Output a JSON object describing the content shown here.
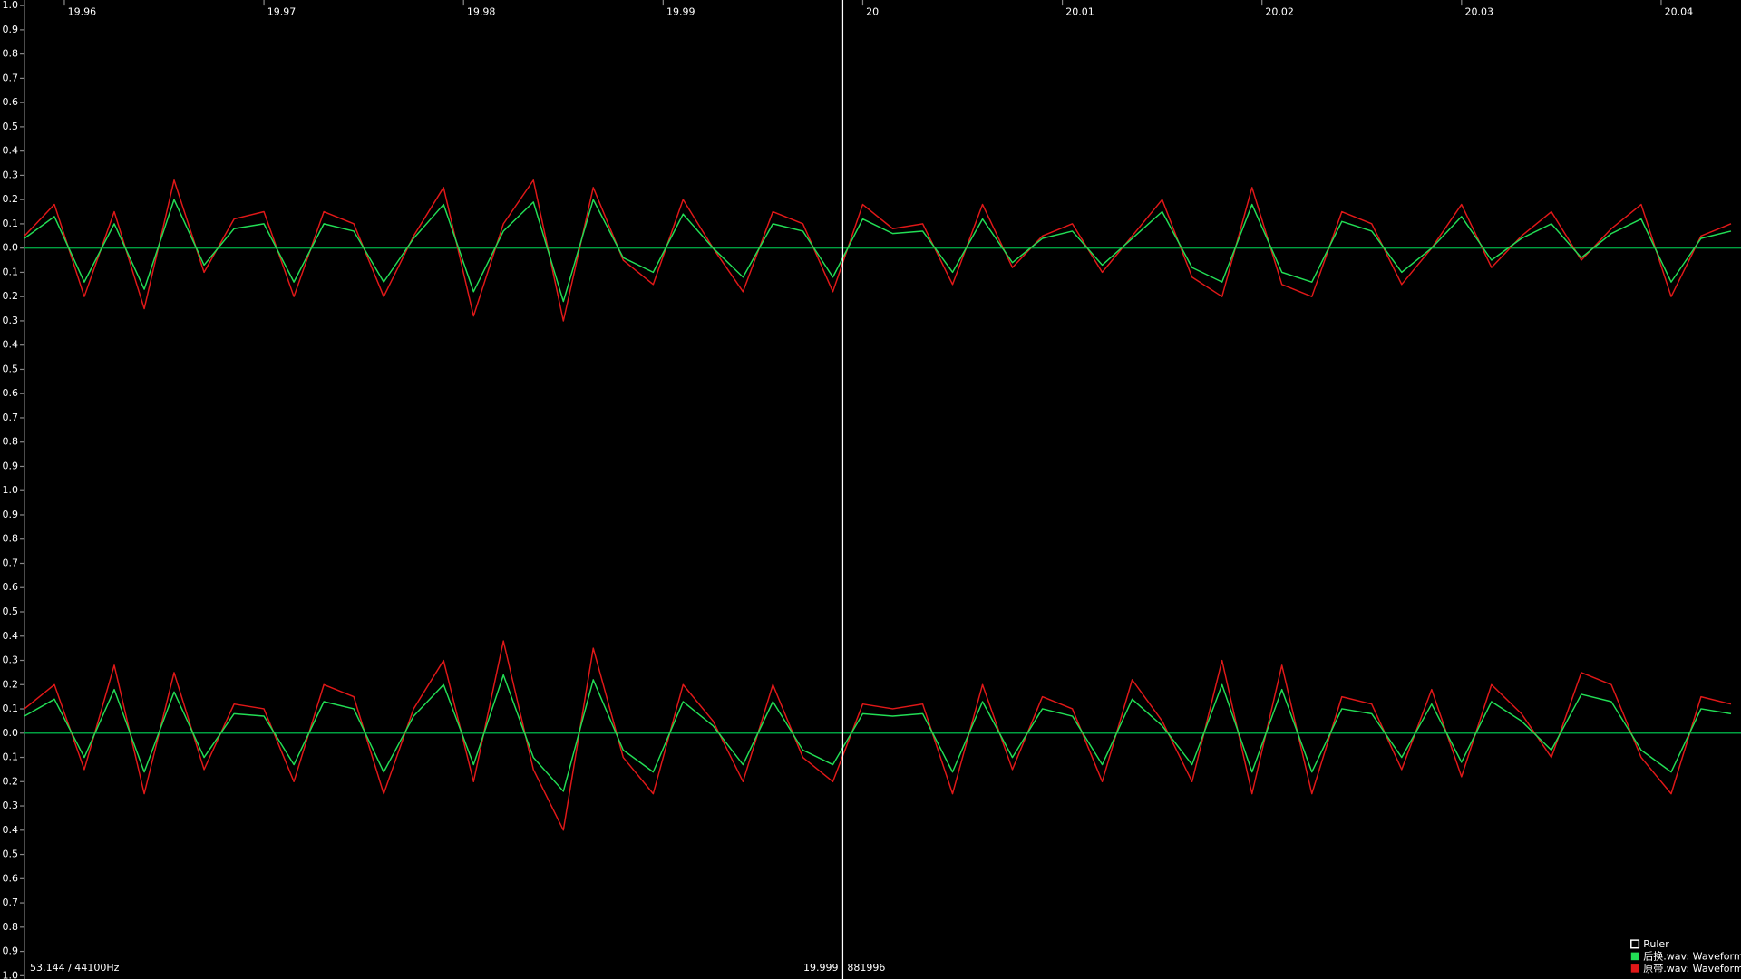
{
  "chart_data": [
    {
      "type": "line",
      "x": [
        19.958,
        19.9595,
        19.961,
        19.9625,
        19.964,
        19.9655,
        19.967,
        19.9685,
        19.97,
        19.9715,
        19.973,
        19.9745,
        19.976,
        19.9775,
        19.979,
        19.9805,
        19.982,
        19.9835,
        19.985,
        19.9865,
        19.988,
        19.9895,
        19.991,
        19.9925,
        19.994,
        19.9955,
        19.997,
        19.9985,
        20.0,
        20.0015,
        20.003,
        20.0045,
        20.006,
        20.0075,
        20.009,
        20.0105,
        20.012,
        20.0135,
        20.015,
        20.0165,
        20.018,
        20.0195,
        20.021,
        20.0225,
        20.024,
        20.0255,
        20.027,
        20.0285,
        20.03,
        20.0315,
        20.033,
        20.0345,
        20.036,
        20.0375,
        20.039,
        20.0405,
        20.042,
        20.0435
      ],
      "series": [
        {
          "name": "后换.wav: Waveform",
          "color": "#22dd55",
          "values": [
            0.04,
            0.13,
            -0.14,
            0.1,
            -0.17,
            0.2,
            -0.07,
            0.08,
            0.1,
            -0.14,
            0.1,
            0.07,
            -0.14,
            0.04,
            0.18,
            -0.18,
            0.07,
            0.19,
            -0.22,
            0.2,
            -0.04,
            -0.1,
            0.14,
            0.0,
            -0.12,
            0.1,
            0.07,
            -0.12,
            0.12,
            0.06,
            0.07,
            -0.1,
            0.12,
            -0.06,
            0.04,
            0.07,
            -0.07,
            0.04,
            0.15,
            -0.08,
            -0.14,
            0.18,
            -0.1,
            -0.14,
            0.11,
            0.07,
            -0.1,
            0.0,
            0.13,
            -0.05,
            0.04,
            0.1,
            -0.04,
            0.06,
            0.12,
            -0.14,
            0.04,
            0.07
          ]
        },
        {
          "name": "原带.wav: Waveform",
          "color": "#e01818",
          "values": [
            0.05,
            0.18,
            -0.2,
            0.15,
            -0.25,
            0.28,
            -0.1,
            0.12,
            0.15,
            -0.2,
            0.15,
            0.1,
            -0.2,
            0.05,
            0.25,
            -0.28,
            0.1,
            0.28,
            -0.3,
            0.25,
            -0.05,
            -0.15,
            0.2,
            0.0,
            -0.18,
            0.15,
            0.1,
            -0.18,
            0.18,
            0.08,
            0.1,
            -0.15,
            0.18,
            -0.08,
            0.05,
            0.1,
            -0.1,
            0.05,
            0.2,
            -0.12,
            -0.2,
            0.25,
            -0.15,
            -0.2,
            0.15,
            0.1,
            -0.15,
            0.0,
            0.18,
            -0.08,
            0.05,
            0.15,
            -0.05,
            0.08,
            0.18,
            -0.2,
            0.05,
            0.1
          ]
        }
      ],
      "xlim": [
        19.958,
        20.044
      ],
      "xticks": [
        19.96,
        19.97,
        19.98,
        19.99,
        20,
        20.01,
        20.02,
        20.03,
        20.04
      ],
      "ylim": [
        -1,
        1
      ],
      "yticks": [
        {
          "value": 1,
          "label": "1.0"
        },
        0.9,
        0.8,
        0.7,
        0.6,
        0.5,
        0.4,
        0.3,
        0.2,
        0.1,
        {
          "value": 0,
          "label": "0.0"
        },
        {
          "value": -0.1,
          "label": "0.1"
        },
        {
          "value": -0.2,
          "label": "0.2"
        },
        {
          "value": -0.3,
          "label": "0.3"
        },
        {
          "value": -0.4,
          "label": "0.4"
        },
        {
          "value": -0.5,
          "label": "0.5"
        },
        {
          "value": -0.6,
          "label": "0.6"
        },
        {
          "value": -0.7,
          "label": "0.7"
        },
        {
          "value": -0.8,
          "label": "0.8"
        },
        {
          "value": -0.9,
          "label": "0.9"
        },
        {
          "value": -1,
          "label": "1.0"
        }
      ],
      "zero_line_color": "#00a040"
    },
    {
      "type": "line",
      "x": [
        19.958,
        19.9595,
        19.961,
        19.9625,
        19.964,
        19.9655,
        19.967,
        19.9685,
        19.97,
        19.9715,
        19.973,
        19.9745,
        19.976,
        19.9775,
        19.979,
        19.9805,
        19.982,
        19.9835,
        19.985,
        19.9865,
        19.988,
        19.9895,
        19.991,
        19.9925,
        19.994,
        19.9955,
        19.997,
        19.9985,
        20.0,
        20.0015,
        20.003,
        20.0045,
        20.006,
        20.0075,
        20.009,
        20.0105,
        20.012,
        20.0135,
        20.015,
        20.0165,
        20.018,
        20.0195,
        20.021,
        20.0225,
        20.024,
        20.0255,
        20.027,
        20.0285,
        20.03,
        20.0315,
        20.033,
        20.0345,
        20.036,
        20.0375,
        20.039,
        20.0405,
        20.042,
        20.0435
      ],
      "series": [
        {
          "color": "#22dd55",
          "values": [
            0.07,
            0.14,
            -0.1,
            0.18,
            -0.16,
            0.17,
            -0.1,
            0.08,
            0.07,
            -0.13,
            0.13,
            0.1,
            -0.16,
            0.07,
            0.2,
            -0.13,
            0.24,
            -0.1,
            -0.24,
            0.22,
            -0.07,
            -0.16,
            0.13,
            0.03,
            -0.13,
            0.13,
            -0.07,
            -0.13,
            0.08,
            0.07,
            0.08,
            -0.16,
            0.13,
            -0.1,
            0.1,
            0.07,
            -0.13,
            0.14,
            0.03,
            -0.13,
            0.2,
            -0.16,
            0.18,
            -0.16,
            0.1,
            0.08,
            -0.1,
            0.12,
            -0.12,
            0.13,
            0.05,
            -0.07,
            0.16,
            0.13,
            -0.07,
            -0.16,
            0.1,
            0.08
          ]
        },
        {
          "color": "#e01818",
          "values": [
            0.1,
            0.2,
            -0.15,
            0.28,
            -0.25,
            0.25,
            -0.15,
            0.12,
            0.1,
            -0.2,
            0.2,
            0.15,
            -0.25,
            0.1,
            0.3,
            -0.2,
            0.38,
            -0.15,
            -0.4,
            0.35,
            -0.1,
            -0.25,
            0.2,
            0.05,
            -0.2,
            0.2,
            -0.1,
            -0.2,
            0.12,
            0.1,
            0.12,
            -0.25,
            0.2,
            -0.15,
            0.15,
            0.1,
            -0.2,
            0.22,
            0.05,
            -0.2,
            0.3,
            -0.25,
            0.28,
            -0.25,
            0.15,
            0.12,
            -0.15,
            0.18,
            -0.18,
            0.2,
            0.08,
            -0.1,
            0.25,
            0.2,
            -0.1,
            -0.25,
            0.15,
            0.12
          ]
        }
      ],
      "xlim": [
        19.958,
        20.044
      ],
      "ylim": [
        -1,
        1
      ],
      "yticks": [
        0.9,
        0.8,
        0.7,
        0.6,
        0.5,
        0.4,
        0.3,
        0.2,
        0.1,
        {
          "value": 0,
          "label": "0.0"
        },
        {
          "value": -0.1,
          "label": "0.1"
        },
        {
          "value": -0.2,
          "label": "0.2"
        },
        {
          "value": -0.3,
          "label": "0.3"
        },
        {
          "value": -0.4,
          "label": "0.4"
        },
        {
          "value": -0.5,
          "label": "0.5"
        },
        {
          "value": -0.6,
          "label": "0.6"
        },
        {
          "value": -0.7,
          "label": "0.7"
        },
        {
          "value": -0.8,
          "label": "0.8"
        },
        {
          "value": -0.9,
          "label": "0.9"
        },
        {
          "value": -1,
          "label": "1.0"
        }
      ],
      "zero_line_color": "#00a040"
    }
  ],
  "cursor": {
    "time": 19.999,
    "frame": 881996
  },
  "zoom_label": "53.144 / 44100Hz",
  "ruler_label": "Ruler"
}
